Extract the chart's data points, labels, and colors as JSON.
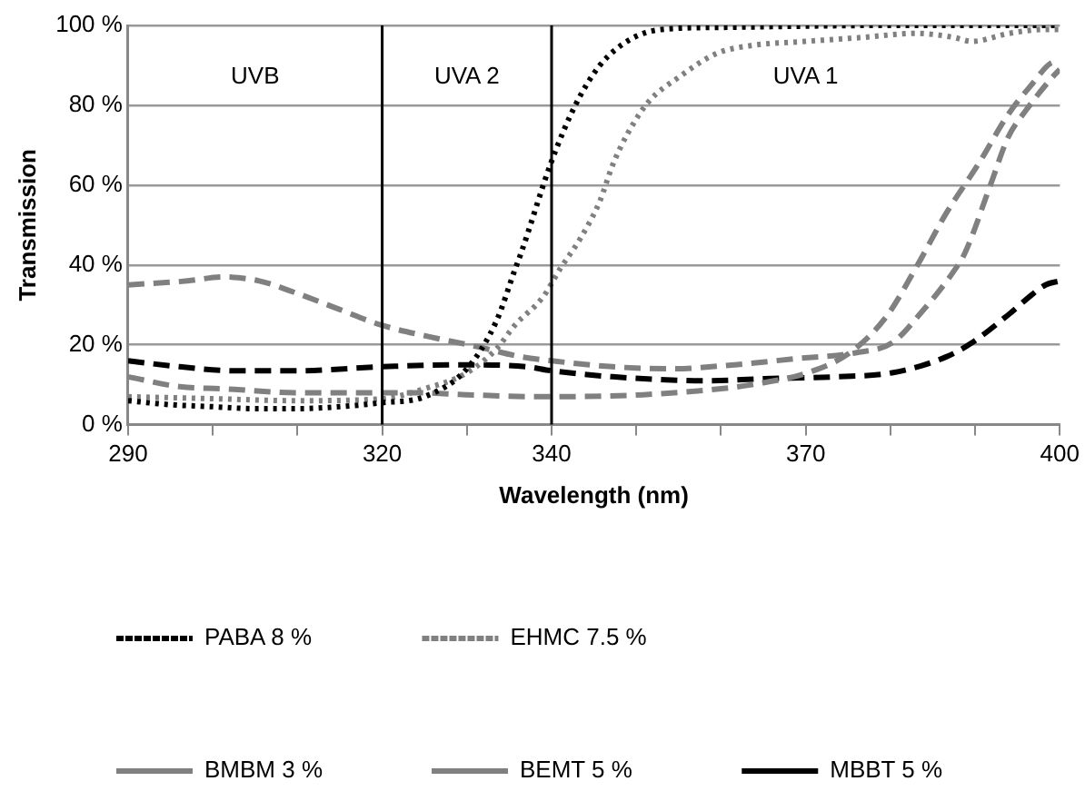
{
  "chart_data": {
    "type": "line",
    "xlabel": "Wavelength (nm)",
    "ylabel": "Transmission",
    "annotations": [
      "UVB",
      "UVA 2",
      "UVA 1"
    ],
    "xlim": [
      290,
      400
    ],
    "xticks": [
      290,
      {
        "value": 300,
        "label": null
      },
      {
        "value": 310,
        "label": null
      },
      320,
      {
        "value": 330,
        "label": null
      },
      340,
      {
        "value": 350,
        "label": null
      },
      {
        "value": 360,
        "label": null
      },
      370,
      {
        "value": 380,
        "label": null
      },
      {
        "value": 390,
        "label": null
      },
      400
    ],
    "ylim": [
      0,
      100
    ],
    "yticks": [
      {
        "value": 0,
        "label": "0 %"
      },
      {
        "value": 20,
        "label": "20 %"
      },
      {
        "value": 40,
        "label": "40 %"
      },
      {
        "value": 60,
        "label": "60 %"
      },
      {
        "value": 80,
        "label": "80 %"
      },
      {
        "value": 100,
        "label": "100 %"
      }
    ],
    "grid": "y",
    "legend": "bottom",
    "marker": "none",
    "ref_lines": [
      {
        "axis": "x",
        "value": 320,
        "color": "#000000"
      },
      {
        "axis": "x",
        "value": 340,
        "color": "#000000"
      }
    ],
    "series": [
      {
        "name": "PABA 8 %",
        "color": "#000000",
        "line_style": "dotted",
        "x": [
          290,
          295,
          300,
          305,
          310,
          315,
          320,
          325,
          330,
          333.5,
          335.7,
          336.4,
          340,
          342.8,
          345.7,
          349.3,
          353,
          360,
          380,
          400
        ],
        "values": [
          6,
          5,
          4.5,
          4,
          4,
          4.5,
          5.5,
          7,
          14,
          26,
          39,
          43,
          66,
          80,
          90,
          96.5,
          99,
          99.5,
          100,
          100
        ]
      },
      {
        "name": "EHMC 7.5 %",
        "color": "#808080",
        "line_style": "dotted",
        "x": [
          290,
          300,
          310,
          320,
          325,
          330,
          333.5,
          335.7,
          339,
          341,
          343.5,
          345.7,
          347.2,
          349,
          351.5,
          355,
          359.5,
          363.7,
          370,
          376.7,
          383,
          387.5,
          389.6,
          394,
          398.3,
          400
        ],
        "values": [
          7,
          6.5,
          6,
          6.5,
          9,
          13,
          19,
          25,
          32,
          39,
          47,
          56,
          65,
          73,
          81,
          87,
          93,
          95,
          96,
          97,
          98,
          97,
          96,
          98,
          99,
          99
        ]
      },
      {
        "name": "BMBM 3 %",
        "color": "#808080",
        "line_style": "dashed",
        "x": [
          290,
          297,
          301.2,
          305.5,
          309.8,
          314.8,
          319.8,
          325.6,
          331.3,
          336.4,
          340,
          347.2,
          354.3,
          361.6,
          368.7,
          375.9,
          380.2,
          383.8,
          387.5,
          388.8,
          391.8,
          393.9,
          396.1,
          398.9,
          400
        ],
        "values": [
          35,
          36,
          37,
          36,
          33,
          29,
          25,
          22,
          19.5,
          17,
          16,
          14.5,
          14,
          15,
          16.5,
          18,
          20.5,
          28.5,
          38.5,
          43,
          60,
          72,
          79,
          86.5,
          89
        ]
      },
      {
        "name": "BEMT 5 %",
        "color": "#808080",
        "line_style": "dashed",
        "x": [
          290,
          296.1,
          301.2,
          309.8,
          320,
          324,
          330,
          338.5,
          340,
          350.8,
          360,
          365,
          370.2,
          375.2,
          379.5,
          383.2,
          386.6,
          390.3,
          394,
          396.8,
          398.9,
          400
        ],
        "values": [
          12,
          9.5,
          9,
          8,
          8,
          8,
          7.5,
          7,
          7,
          7.5,
          9,
          10.5,
          13,
          18,
          27,
          40,
          53,
          65,
          78,
          85.5,
          90.5,
          91
        ]
      },
      {
        "name": "MBBT 5 %",
        "color": "#000000",
        "line_style": "dashed",
        "x": [
          290,
          296.1,
          302.5,
          309.8,
          320,
          328.4,
          330,
          337,
          340,
          347.2,
          358,
          365,
          373.7,
          380.2,
          386.6,
          389.6,
          393.9,
          396.1,
          398.3,
          400
        ],
        "values": [
          16,
          14.5,
          13.5,
          13.5,
          14.5,
          15,
          15,
          14.5,
          13.5,
          12,
          11,
          11.5,
          12,
          13,
          17,
          20.5,
          27.5,
          31.5,
          35,
          36
        ]
      }
    ]
  }
}
